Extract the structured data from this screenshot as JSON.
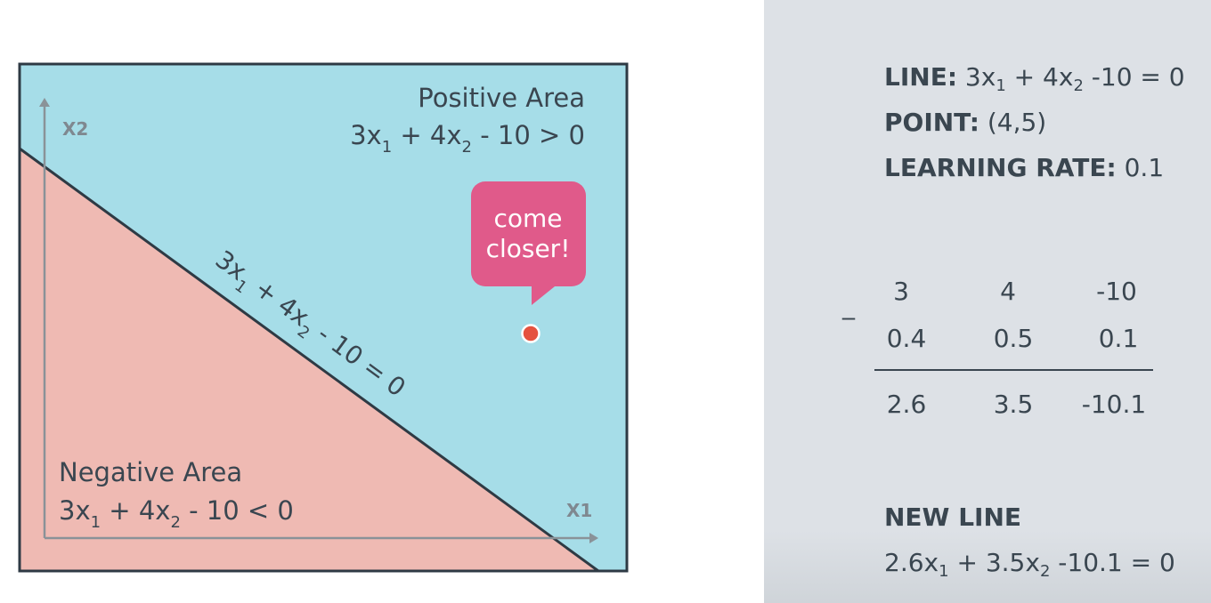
{
  "diagram": {
    "positive_area": {
      "title": "Positive Area",
      "equation": {
        "a": "3x",
        "s1": "1",
        "b": " + 4x",
        "s2": "2",
        "c": " - 10 > 0"
      }
    },
    "negative_area": {
      "title": "Negative Area",
      "equation": {
        "a": "3x",
        "s1": "1",
        "b": " + 4x",
        "s2": "2",
        "c": " - 10 < 0"
      }
    },
    "boundary_equation": {
      "a": "3x",
      "s1": "1",
      "b": " + 4x",
      "s2": "2",
      "c": " - 10 = 0"
    },
    "x_axis_label": "X1",
    "y_axis_label": "X2",
    "bubble": {
      "line1": "come",
      "line2": "closer!"
    },
    "colors": {
      "positive": "#a6dde8",
      "negative": "#efbab3",
      "bubble": "#e05a8a",
      "point": "#e5523f",
      "border": "#3a4650",
      "axis": "#8a9298"
    }
  },
  "panel": {
    "line": {
      "label": "LINE:",
      "a": " 3x",
      "s1": "1",
      "b": " + 4x",
      "s2": "2",
      "c": " -10 = 0"
    },
    "point": {
      "label": "POINT:",
      "value": " (4,5)"
    },
    "learning_rate": {
      "label": "LEARNING RATE:",
      "value": " 0.1"
    },
    "operator": "_",
    "row1": [
      "3",
      "4",
      "-10"
    ],
    "row2": [
      "0.4",
      "0.5",
      "0.1"
    ],
    "result": [
      "2.6",
      "3.5",
      "-10.1"
    ],
    "new_line_label": "NEW LINE",
    "new_line": {
      "a": "2.6x",
      "s1": "1",
      "b": " + 3.5x",
      "s2": "2",
      "c": " -10.1 = 0"
    }
  }
}
